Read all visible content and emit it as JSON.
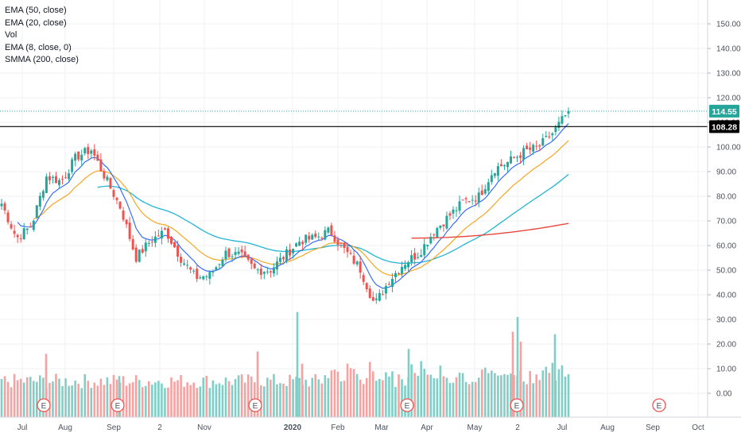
{
  "legend": {
    "items": [
      "EMA (50, close)",
      "EMA (20, close)",
      "Vol",
      "EMA (8, close, 0)",
      "SMMA (200, close)"
    ]
  },
  "price_tags": {
    "current": "114.55",
    "level": "108.28"
  },
  "colors": {
    "up": "#26a69a",
    "down": "#ef5350",
    "ema8": "#2962ff",
    "ema20": "#f5a623",
    "ema50": "#22b5d6",
    "smma200": "#e8473e",
    "vol_up": "#80cfc6",
    "vol_down": "#f4a3a2",
    "current_tag": "#26a69a",
    "level_tag": "#000000",
    "grid": "#eef0f3",
    "earnings": "#ef5350"
  },
  "chart_data": {
    "type": "candlestick",
    "x_labels": [
      "Jul",
      "Aug",
      "Sep",
      "2",
      "Nov",
      "2020",
      "Feb",
      "Mar",
      "Apr",
      "May",
      "2",
      "Jul",
      "Aug",
      "Sep",
      "Oct"
    ],
    "y_ticks": [
      "150.00",
      "140.00",
      "130.00",
      "120.00",
      "110.00",
      "100.00",
      "90.00",
      "80.00",
      "70.00",
      "60.00",
      "50.00",
      "40.00",
      "30.00",
      "20.00",
      "10.00",
      "0.00"
    ],
    "ylim": [
      -10,
      160
    ],
    "horizontal_level": 108.28,
    "last_close": 114.55,
    "earnings_marker_label": "E",
    "earnings_markers": [
      "Aug",
      "Sep",
      "Nov",
      "Mar",
      "May",
      "Sep"
    ],
    "price_anchors": [
      [
        "Jul 1",
        77
      ],
      [
        "Jul 15",
        63
      ],
      [
        "Jul 22",
        68
      ],
      [
        "Aug 1",
        88
      ],
      [
        "Aug 10",
        86
      ],
      [
        "Aug 20",
        96
      ],
      [
        "Aug 27",
        99
      ],
      [
        "Sep 5",
        87
      ],
      [
        "Sep 15",
        75
      ],
      [
        "Sep 25",
        55
      ],
      [
        "Oct 1",
        62
      ],
      [
        "Oct 5",
        66
      ],
      [
        "Oct 12",
        55
      ],
      [
        "Oct 20",
        47
      ],
      [
        "Nov 1",
        48
      ],
      [
        "Nov 10",
        57
      ],
      [
        "Nov 20",
        56
      ],
      [
        "Dec 1",
        50
      ],
      [
        "Dec 15",
        50
      ],
      [
        "2020 Jan 1",
        56
      ],
      [
        "Jan 15",
        62
      ],
      [
        "Jan 25",
        63
      ],
      [
        "Feb 10",
        66
      ],
      [
        "Feb 20",
        58
      ],
      [
        "Mar 1",
        51
      ],
      [
        "Mar 10",
        36
      ],
      [
        "Mar 18",
        46
      ],
      [
        "Mar 25",
        53
      ],
      [
        "Apr 5",
        57
      ],
      [
        "Apr 15",
        66
      ],
      [
        "Apr 25",
        72
      ],
      [
        "May 10",
        78
      ],
      [
        "May 20",
        80
      ],
      [
        "Jun 1",
        91
      ],
      [
        "Jun 10",
        94
      ],
      [
        "Jun 20",
        98
      ],
      [
        "Jun 28",
        100
      ],
      [
        "Jul 5",
        106
      ],
      [
        "Jul 8",
        114.55
      ]
    ],
    "series": [
      {
        "name": "EMA (8, close, 0)",
        "color": "#2962ff"
      },
      {
        "name": "EMA (20, close)",
        "color": "#f5a623"
      },
      {
        "name": "EMA (50, close)",
        "color": "#22b5d6"
      },
      {
        "name": "SMMA (200, close)",
        "color": "#e8473e"
      },
      {
        "name": "Vol",
        "color": "#80cfc6"
      }
    ],
    "volume_scale": {
      "max": 30,
      "min": -10
    },
    "volume_peaks": [
      [
        "Aug 1",
        16
      ],
      [
        "Sep 10",
        7
      ],
      [
        "Nov 20",
        17
      ],
      [
        "2020 Jan 1",
        33
      ],
      [
        "Jan 10",
        12
      ],
      [
        "Mar 12",
        18
      ],
      [
        "Jun 1",
        25
      ],
      [
        "Jun 3",
        31
      ],
      [
        "Jun 5",
        21
      ],
      [
        "Jun 28",
        24
      ]
    ]
  }
}
